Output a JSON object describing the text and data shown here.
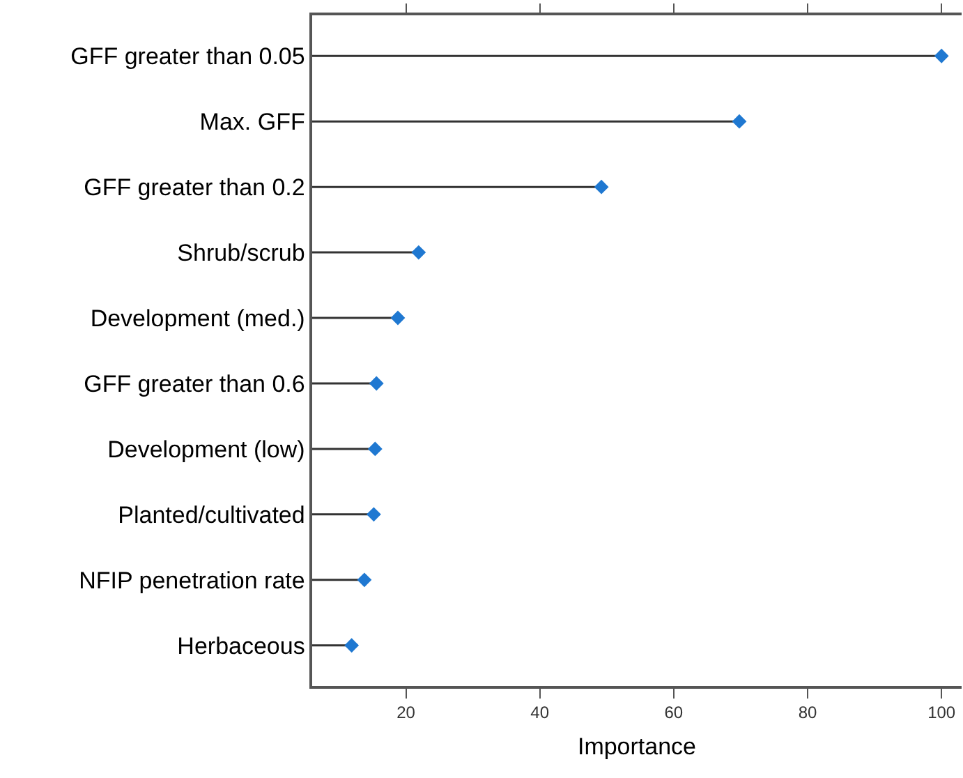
{
  "chart_data": {
    "type": "lollipop",
    "orientation": "horizontal",
    "xlabel": "Importance",
    "categories": [
      "GFF greater than 0.05",
      "Max. GFF",
      "GFF greater than 0.2",
      "Shrub/scrub",
      "Development (med.)",
      "GFF greater than 0.6",
      "Development (low)",
      "Planted/cultivated",
      "NFIP penetration rate",
      "Herbaceous"
    ],
    "values": [
      100,
      69.8,
      49.2,
      21.9,
      18.8,
      15.6,
      15.4,
      15.2,
      13.8,
      11.9
    ],
    "color": "#1f78d1",
    "marker": "diamond",
    "xlim": [
      6,
      103
    ],
    "xticks": [
      20,
      40,
      60,
      80,
      100
    ]
  }
}
